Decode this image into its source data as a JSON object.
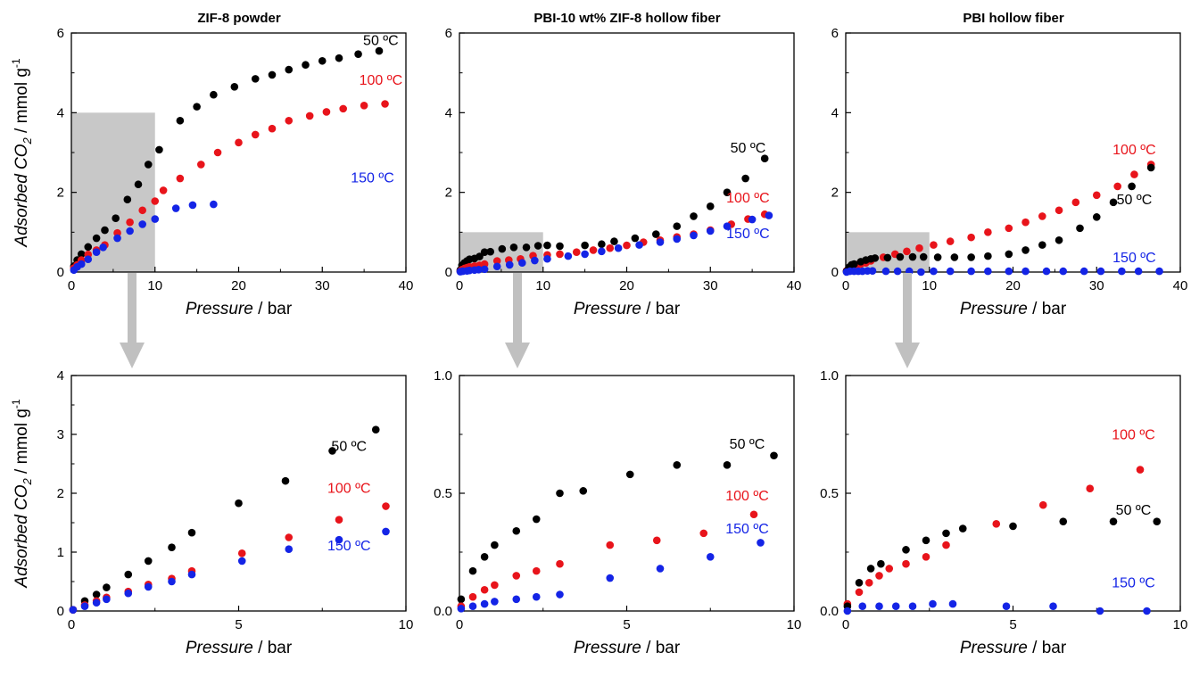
{
  "colors": {
    "black": "#000000",
    "red": "#e8141b",
    "blue": "#1424e6",
    "highlight": "#c8c8c8",
    "arrow": "#c0c0c0"
  },
  "axis_text": {
    "x_italic": "Pressure",
    "x_unit": " / bar",
    "y_italic_prefix": "Adsorbed CO",
    "y_sub": "2",
    "y_unit": " / mmol g",
    "y_sup": "-1"
  },
  "chart_data": [
    {
      "type": "scatter",
      "title": "ZIF-8 powder",
      "xlabel": "Pressure / bar",
      "ylabel": "Adsorbed CO2 / mmol g-1",
      "xlim": [
        0,
        40
      ],
      "ylim": [
        0,
        6
      ],
      "xticks": [
        "0",
        "10",
        "20",
        "30",
        "40"
      ],
      "yticks": [
        "0",
        "2",
        "4",
        "6"
      ],
      "highlight": {
        "x": [
          0,
          10
        ],
        "y": [
          0,
          4
        ]
      },
      "series": [
        {
          "name": "50 ºC",
          "color": "black",
          "label_at": [
            37,
            5.7
          ],
          "x": [
            0.3,
            0.7,
            1.2,
            2.0,
            3.0,
            4.0,
            5.3,
            6.7,
            8.0,
            9.2,
            10.5,
            13,
            15,
            17,
            19.5,
            22,
            24,
            26,
            28,
            30,
            32,
            34.3,
            36.8
          ],
          "y": [
            0.15,
            0.3,
            0.45,
            0.63,
            0.85,
            1.05,
            1.35,
            1.82,
            2.2,
            2.7,
            3.07,
            3.8,
            4.15,
            4.45,
            4.65,
            4.85,
            4.95,
            5.08,
            5.2,
            5.3,
            5.37,
            5.47,
            5.55
          ]
        },
        {
          "name": "100 ºC",
          "color": "red",
          "label_at": [
            37,
            4.7
          ],
          "x": [
            0.3,
            0.7,
            1.2,
            2.0,
            3.0,
            4.0,
            5.5,
            7,
            8.5,
            10,
            11,
            13,
            15.5,
            17.5,
            20,
            22,
            24,
            26,
            28.5,
            30.5,
            32.5,
            35,
            37.5
          ],
          "y": [
            0.1,
            0.18,
            0.3,
            0.44,
            0.55,
            0.68,
            0.98,
            1.25,
            1.55,
            1.78,
            2.05,
            2.35,
            2.7,
            3.0,
            3.25,
            3.45,
            3.6,
            3.8,
            3.92,
            4.02,
            4.1,
            4.18,
            4.22
          ]
        },
        {
          "name": "150 ºC",
          "color": "blue",
          "label_at": [
            36,
            2.25
          ],
          "x": [
            0.3,
            0.7,
            1.2,
            2.0,
            3.0,
            3.8,
            5.5,
            7,
            8.5,
            10,
            12.5,
            14.5,
            17
          ],
          "y": [
            0.05,
            0.13,
            0.2,
            0.32,
            0.5,
            0.62,
            0.85,
            1.03,
            1.2,
            1.33,
            1.6,
            1.68,
            1.7
          ]
        }
      ]
    },
    {
      "type": "scatter",
      "title": "PBI-10 wt% ZIF-8 hollow fiber",
      "xlabel": "Pressure / bar",
      "ylabel": "",
      "xlim": [
        0,
        40
      ],
      "ylim": [
        0,
        6
      ],
      "xticks": [
        "0",
        "10",
        "20",
        "30",
        "40"
      ],
      "yticks": [
        "0",
        "2",
        "4",
        "6"
      ],
      "highlight": {
        "x": [
          0,
          10
        ],
        "y": [
          0,
          1
        ]
      },
      "series": [
        {
          "name": "50 ºC",
          "color": "black",
          "label_at": [
            34.5,
            3.0
          ],
          "x": [
            0.1,
            0.3,
            0.6,
            0.9,
            1.2,
            1.8,
            2.4,
            3.0,
            3.7,
            5.1,
            6.5,
            8.0,
            9.4,
            10.5,
            12,
            15,
            17,
            18.5,
            21,
            23.5,
            26,
            28,
            30,
            32,
            34.2,
            36.5
          ],
          "y": [
            0.05,
            0.17,
            0.23,
            0.28,
            0.32,
            0.34,
            0.39,
            0.5,
            0.51,
            0.58,
            0.62,
            0.62,
            0.66,
            0.67,
            0.65,
            0.67,
            0.7,
            0.77,
            0.85,
            0.95,
            1.15,
            1.4,
            1.65,
            2.0,
            2.35,
            2.85
          ]
        },
        {
          "name": "100 ºC",
          "color": "red",
          "label_at": [
            34.5,
            1.75
          ],
          "x": [
            0.1,
            0.3,
            0.6,
            0.9,
            1.2,
            1.8,
            2.4,
            3.0,
            4.5,
            5.9,
            7.3,
            8.8,
            10.5,
            12,
            14,
            16,
            18,
            20,
            22,
            24,
            26,
            28,
            30,
            32.5,
            34.5,
            36.5
          ],
          "y": [
            0.02,
            0.06,
            0.09,
            0.11,
            0.13,
            0.15,
            0.17,
            0.2,
            0.28,
            0.3,
            0.33,
            0.41,
            0.43,
            0.45,
            0.5,
            0.55,
            0.6,
            0.67,
            0.75,
            0.8,
            0.88,
            0.95,
            1.05,
            1.2,
            1.33,
            1.45
          ]
        },
        {
          "name": "150 ºC",
          "color": "blue",
          "label_at": [
            34.5,
            0.85
          ],
          "x": [
            0.1,
            0.4,
            0.9,
            1.2,
            1.8,
            2.3,
            3.0,
            4.5,
            6.0,
            7.5,
            9.0,
            10.5,
            13,
            15,
            17,
            19,
            21.5,
            24,
            26,
            28,
            30,
            32,
            35,
            37
          ],
          "y": [
            0.01,
            0.02,
            0.03,
            0.04,
            0.05,
            0.06,
            0.07,
            0.14,
            0.18,
            0.23,
            0.29,
            0.33,
            0.4,
            0.45,
            0.52,
            0.6,
            0.68,
            0.75,
            0.83,
            0.92,
            1.03,
            1.15,
            1.32,
            1.42
          ]
        }
      ]
    },
    {
      "type": "scatter",
      "title": "PBI hollow fiber",
      "xlabel": "Pressure / bar",
      "ylabel": "",
      "xlim": [
        0,
        40
      ],
      "ylim": [
        0,
        6
      ],
      "xticks": [
        "0",
        "10",
        "20",
        "30",
        "40"
      ],
      "yticks": [
        "0",
        "2",
        "4",
        "6"
      ],
      "highlight": {
        "x": [
          0,
          10
        ],
        "y": [
          0,
          1
        ]
      },
      "series": [
        {
          "name": "100 ºC",
          "color": "red",
          "label_at": [
            34.5,
            2.95
          ],
          "x": [
            0.1,
            0.4,
            0.7,
            1.0,
            1.3,
            1.8,
            2.4,
            3.0,
            4.5,
            5.9,
            7.3,
            8.8,
            10.5,
            12.5,
            15,
            17,
            19.5,
            21.5,
            23.5,
            25.5,
            27.5,
            30,
            32.5,
            34.5,
            36.5
          ],
          "y": [
            0.03,
            0.08,
            0.12,
            0.15,
            0.18,
            0.2,
            0.23,
            0.28,
            0.37,
            0.45,
            0.52,
            0.6,
            0.68,
            0.77,
            0.87,
            1.0,
            1.1,
            1.25,
            1.4,
            1.55,
            1.75,
            1.93,
            2.15,
            2.45,
            2.7
          ]
        },
        {
          "name": "50 ºC",
          "color": "black",
          "label_at": [
            34.5,
            1.7
          ],
          "x": [
            0.1,
            0.4,
            0.7,
            1.0,
            1.8,
            2.4,
            3.0,
            3.5,
            5.0,
            6.5,
            8.0,
            9.3,
            11,
            13,
            15,
            17,
            19.5,
            21.5,
            23.5,
            25.5,
            28,
            30,
            32,
            34.2,
            36.5
          ],
          "y": [
            0.02,
            0.12,
            0.18,
            0.2,
            0.26,
            0.3,
            0.33,
            0.35,
            0.36,
            0.38,
            0.38,
            0.38,
            0.37,
            0.37,
            0.37,
            0.4,
            0.45,
            0.55,
            0.68,
            0.8,
            1.1,
            1.38,
            1.75,
            2.15,
            2.62
          ]
        },
        {
          "name": "150 ºC",
          "color": "blue",
          "label_at": [
            34.5,
            0.25
          ],
          "x": [
            0.1,
            0.5,
            1.0,
            1.5,
            2.0,
            2.6,
            3.2,
            4.8,
            6.2,
            7.6,
            9.0,
            10.5,
            12.5,
            15,
            17,
            19.5,
            21.5,
            24,
            26,
            28.5,
            30.5,
            33,
            35,
            37.5
          ],
          "y": [
            0.0,
            0.02,
            0.02,
            0.02,
            0.02,
            0.03,
            0.03,
            0.02,
            0.02,
            0.02,
            0.0,
            0.02,
            0.02,
            0.02,
            0.02,
            0.02,
            0.02,
            0.02,
            0.02,
            0.02,
            0.02,
            0.02,
            0.02,
            0.02
          ]
        }
      ]
    },
    {
      "type": "scatter",
      "title": "",
      "xlabel": "Pressure / bar",
      "ylabel": "Adsorbed CO2 / mmol g-1",
      "xlim": [
        0,
        10
      ],
      "ylim": [
        0,
        4
      ],
      "xticks": [
        "0",
        "5",
        "10"
      ],
      "yticks": [
        "0",
        "1",
        "2",
        "3",
        "4"
      ],
      "series": [
        {
          "name": "50 ºC",
          "color": "black",
          "label_at": [
            8.3,
            2.72
          ],
          "x": [
            0.05,
            0.4,
            0.75,
            1.05,
            1.7,
            2.3,
            3.0,
            3.6,
            5.0,
            6.4,
            7.8,
            9.1
          ],
          "y": [
            0.02,
            0.17,
            0.28,
            0.4,
            0.62,
            0.85,
            1.08,
            1.33,
            1.83,
            2.21,
            2.72,
            3.08
          ]
        },
        {
          "name": "100 ºC",
          "color": "red",
          "label_at": [
            8.3,
            2.01
          ],
          "x": [
            0.05,
            0.4,
            0.75,
            1.05,
            1.7,
            2.3,
            3.0,
            3.6,
            5.1,
            6.5,
            8.0,
            9.4
          ],
          "y": [
            0.02,
            0.1,
            0.17,
            0.23,
            0.33,
            0.45,
            0.55,
            0.68,
            0.98,
            1.25,
            1.55,
            1.78
          ]
        },
        {
          "name": "150 ºC",
          "color": "blue",
          "label_at": [
            8.3,
            1.03
          ],
          "x": [
            0.05,
            0.4,
            0.75,
            1.05,
            1.7,
            2.3,
            3.0,
            3.6,
            5.1,
            6.5,
            8.0,
            9.4
          ],
          "y": [
            0.02,
            0.08,
            0.14,
            0.2,
            0.3,
            0.41,
            0.5,
            0.62,
            0.85,
            1.05,
            1.21,
            1.35
          ]
        }
      ]
    },
    {
      "type": "scatter",
      "title": "",
      "xlabel": "Pressure / bar",
      "ylabel": "",
      "xlim": [
        0,
        10
      ],
      "ylim": [
        0,
        1
      ],
      "xticks": [
        "0",
        "5",
        "10"
      ],
      "yticks": [
        "0.0",
        "0.5",
        "1.0"
      ],
      "series": [
        {
          "name": "50 ºC",
          "color": "black",
          "label_at": [
            8.6,
            0.69
          ],
          "x": [
            0.05,
            0.4,
            0.75,
            1.05,
            1.7,
            2.3,
            3.0,
            3.7,
            5.1,
            6.5,
            8.0,
            9.4
          ],
          "y": [
            0.05,
            0.17,
            0.23,
            0.28,
            0.34,
            0.39,
            0.5,
            0.51,
            0.58,
            0.62,
            0.62,
            0.66
          ]
        },
        {
          "name": "100 ºC",
          "color": "red",
          "label_at": [
            8.6,
            0.47
          ],
          "x": [
            0.05,
            0.4,
            0.75,
            1.05,
            1.7,
            2.3,
            3.0,
            4.5,
            5.9,
            7.3,
            8.8
          ],
          "y": [
            0.02,
            0.06,
            0.09,
            0.11,
            0.15,
            0.17,
            0.2,
            0.28,
            0.3,
            0.33,
            0.41
          ]
        },
        {
          "name": "150 ºC",
          "color": "blue",
          "label_at": [
            8.6,
            0.33
          ],
          "x": [
            0.05,
            0.4,
            0.75,
            1.05,
            1.7,
            2.3,
            3.0,
            4.5,
            6.0,
            7.5,
            9.0
          ],
          "y": [
            0.01,
            0.02,
            0.03,
            0.04,
            0.05,
            0.06,
            0.07,
            0.14,
            0.18,
            0.23,
            0.29
          ]
        }
      ]
    },
    {
      "type": "scatter",
      "title": "",
      "xlabel": "Pressure / bar",
      "ylabel": "",
      "xlim": [
        0,
        10
      ],
      "ylim": [
        0,
        1
      ],
      "xticks": [
        "0",
        "5",
        "10"
      ],
      "yticks": [
        "0.0",
        "0.5",
        "1.0"
      ],
      "series": [
        {
          "name": "100 ºC",
          "color": "red",
          "label_at": [
            8.6,
            0.73
          ],
          "x": [
            0.05,
            0.4,
            0.7,
            1.0,
            1.3,
            1.8,
            2.4,
            3.0,
            4.5,
            5.9,
            7.3,
            8.8
          ],
          "y": [
            0.03,
            0.08,
            0.12,
            0.15,
            0.18,
            0.2,
            0.23,
            0.28,
            0.37,
            0.45,
            0.52,
            0.6
          ]
        },
        {
          "name": "50 ºC",
          "color": "black",
          "label_at": [
            8.6,
            0.41
          ],
          "x": [
            0.05,
            0.4,
            0.75,
            1.05,
            1.8,
            2.4,
            3.0,
            3.5,
            5.0,
            6.5,
            8.0,
            9.3
          ],
          "y": [
            0.02,
            0.12,
            0.18,
            0.2,
            0.26,
            0.3,
            0.33,
            0.35,
            0.36,
            0.38,
            0.38,
            0.38
          ]
        },
        {
          "name": "150 ºC",
          "color": "blue",
          "label_at": [
            8.6,
            0.1
          ],
          "x": [
            0.05,
            0.5,
            1.0,
            1.5,
            2.0,
            2.6,
            3.2,
            4.8,
            6.2,
            7.6,
            9.0
          ],
          "y": [
            0.0,
            0.02,
            0.02,
            0.02,
            0.02,
            0.03,
            0.03,
            0.02,
            0.02,
            0.0,
            0.0
          ]
        }
      ]
    }
  ]
}
